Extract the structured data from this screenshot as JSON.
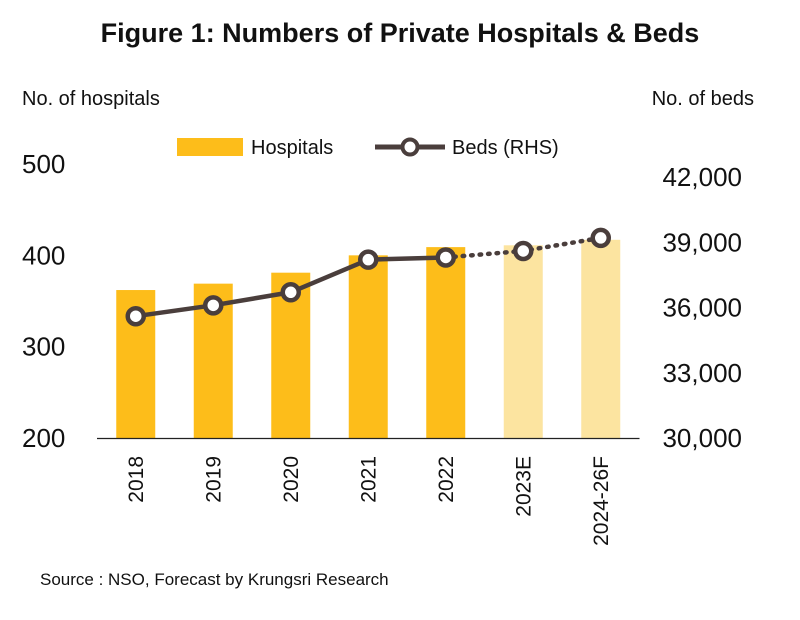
{
  "title": "Figure 1: Numbers of Private Hospitals & Beds",
  "source": "Source : NSO, Forecast by Krungsri Research",
  "chart_data": {
    "type": "bar",
    "categories": [
      "2018",
      "2019",
      "2020",
      "2021",
      "2022",
      "2023E",
      "2024-26F"
    ],
    "forecast_categories": [
      "2023E",
      "2024-26F"
    ],
    "series": [
      {
        "name": "Hospitals",
        "type": "bar",
        "axis": "left",
        "values": [
          362,
          369,
          381,
          400,
          409,
          411,
          417
        ]
      },
      {
        "name": "Beds (RHS)",
        "type": "line",
        "axis": "right",
        "values": [
          35600,
          36100,
          36700,
          38200,
          38300,
          38600,
          39200
        ]
      }
    ],
    "ylabel": "No. of hospitals",
    "y2label": "No. of beds",
    "ylim": [
      200,
      500
    ],
    "y2lim": [
      30000,
      42000
    ],
    "yticks": [
      "200",
      "300",
      "400",
      "500"
    ],
    "y2ticks": [
      "30,000",
      "33,000",
      "36,000",
      "39,000",
      "42,000"
    ],
    "legend_position": "top-center",
    "grid": false,
    "colors": {
      "bar": "#FDBD1A",
      "bar_forecast": "#FCE4A0",
      "line": "#4A3E3C",
      "marker_fill": "#FFFFFF"
    }
  }
}
